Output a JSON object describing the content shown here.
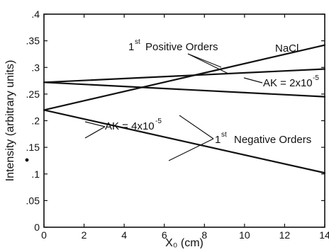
{
  "chart_data": {
    "type": "line",
    "title": "",
    "xlabel": "X₀ (cm)",
    "ylabel": "Intensity (arbitrary units)",
    "xlim": [
      0,
      14
    ],
    "ylim": [
      0,
      0.4
    ],
    "x_ticks": [
      "0",
      "2",
      "4",
      "6",
      "8",
      "10",
      "12",
      "14"
    ],
    "y_ticks": [
      "0",
      ".05",
      ".1",
      ".15",
      ".2",
      ".25",
      ".3",
      ".35",
      ".4"
    ],
    "grid": false,
    "series": [
      {
        "x": [
          0,
          14
        ],
        "y": [
          0.272,
          0.297
        ]
      },
      {
        "x": [
          0,
          14
        ],
        "y": [
          0.272,
          0.245
        ]
      },
      {
        "x": [
          0,
          14
        ],
        "y": [
          0.22,
          0.342
        ]
      },
      {
        "x": [
          0,
          14
        ],
        "y": [
          0.22,
          0.102
        ]
      }
    ],
    "annotations": {
      "material": "NaCl",
      "positive_orders": "Positive Orders",
      "negative_orders": "Negative Orders",
      "order_prefix": "1",
      "order_suffix_positive": "st",
      "order_suffix_negative": "st",
      "ak_small": "AK = 2x10",
      "ak_small_exp": "-5",
      "ak_large": "AK = 4x10",
      "ak_large_exp": "-5"
    },
    "colors": {
      "line": "#111111",
      "axis": "#111111"
    }
  }
}
